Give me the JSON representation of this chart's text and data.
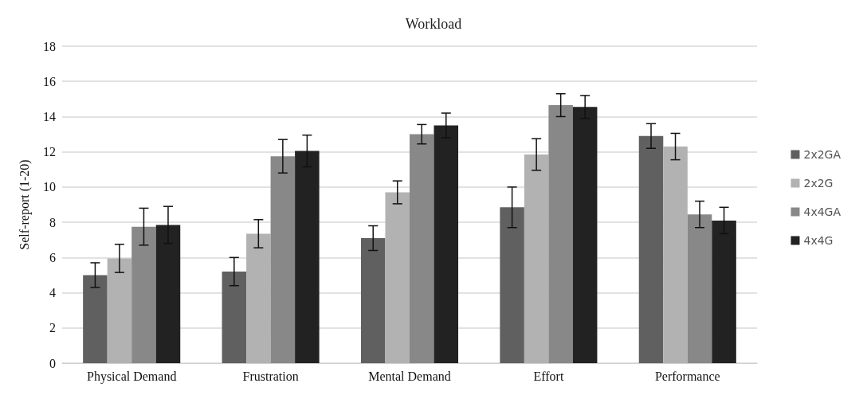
{
  "chart_data": {
    "type": "bar",
    "title": "Workload",
    "ylabel": "Self-report (1-20)",
    "categories": [
      "Physical Demand",
      "Frustration",
      "Mental Demand",
      "Effort",
      "Performance"
    ],
    "series": [
      {
        "name": "2x2GA",
        "color": "#606060",
        "values": [
          5.0,
          5.2,
          7.1,
          8.85,
          12.9
        ],
        "errors": [
          0.7,
          0.8,
          0.7,
          1.15,
          0.7
        ]
      },
      {
        "name": "2x2G",
        "color": "#b2b2b2",
        "values": [
          5.95,
          7.35,
          9.7,
          11.85,
          12.3
        ],
        "errors": [
          0.8,
          0.8,
          0.65,
          0.9,
          0.75
        ]
      },
      {
        "name": "4x4GA",
        "color": "#888888",
        "values": [
          7.75,
          11.75,
          13.0,
          14.65,
          8.45
        ],
        "errors": [
          1.05,
          0.95,
          0.55,
          0.65,
          0.75
        ]
      },
      {
        "name": "4x4G",
        "color": "#222222",
        "values": [
          7.85,
          12.05,
          13.5,
          14.55,
          8.1
        ],
        "errors": [
          1.05,
          0.9,
          0.7,
          0.65,
          0.75
        ]
      }
    ],
    "ylim": [
      0,
      18
    ],
    "yticks": [
      0,
      2,
      4,
      6,
      8,
      10,
      12,
      14,
      16,
      18
    ],
    "grid": "y",
    "legend": "right"
  }
}
